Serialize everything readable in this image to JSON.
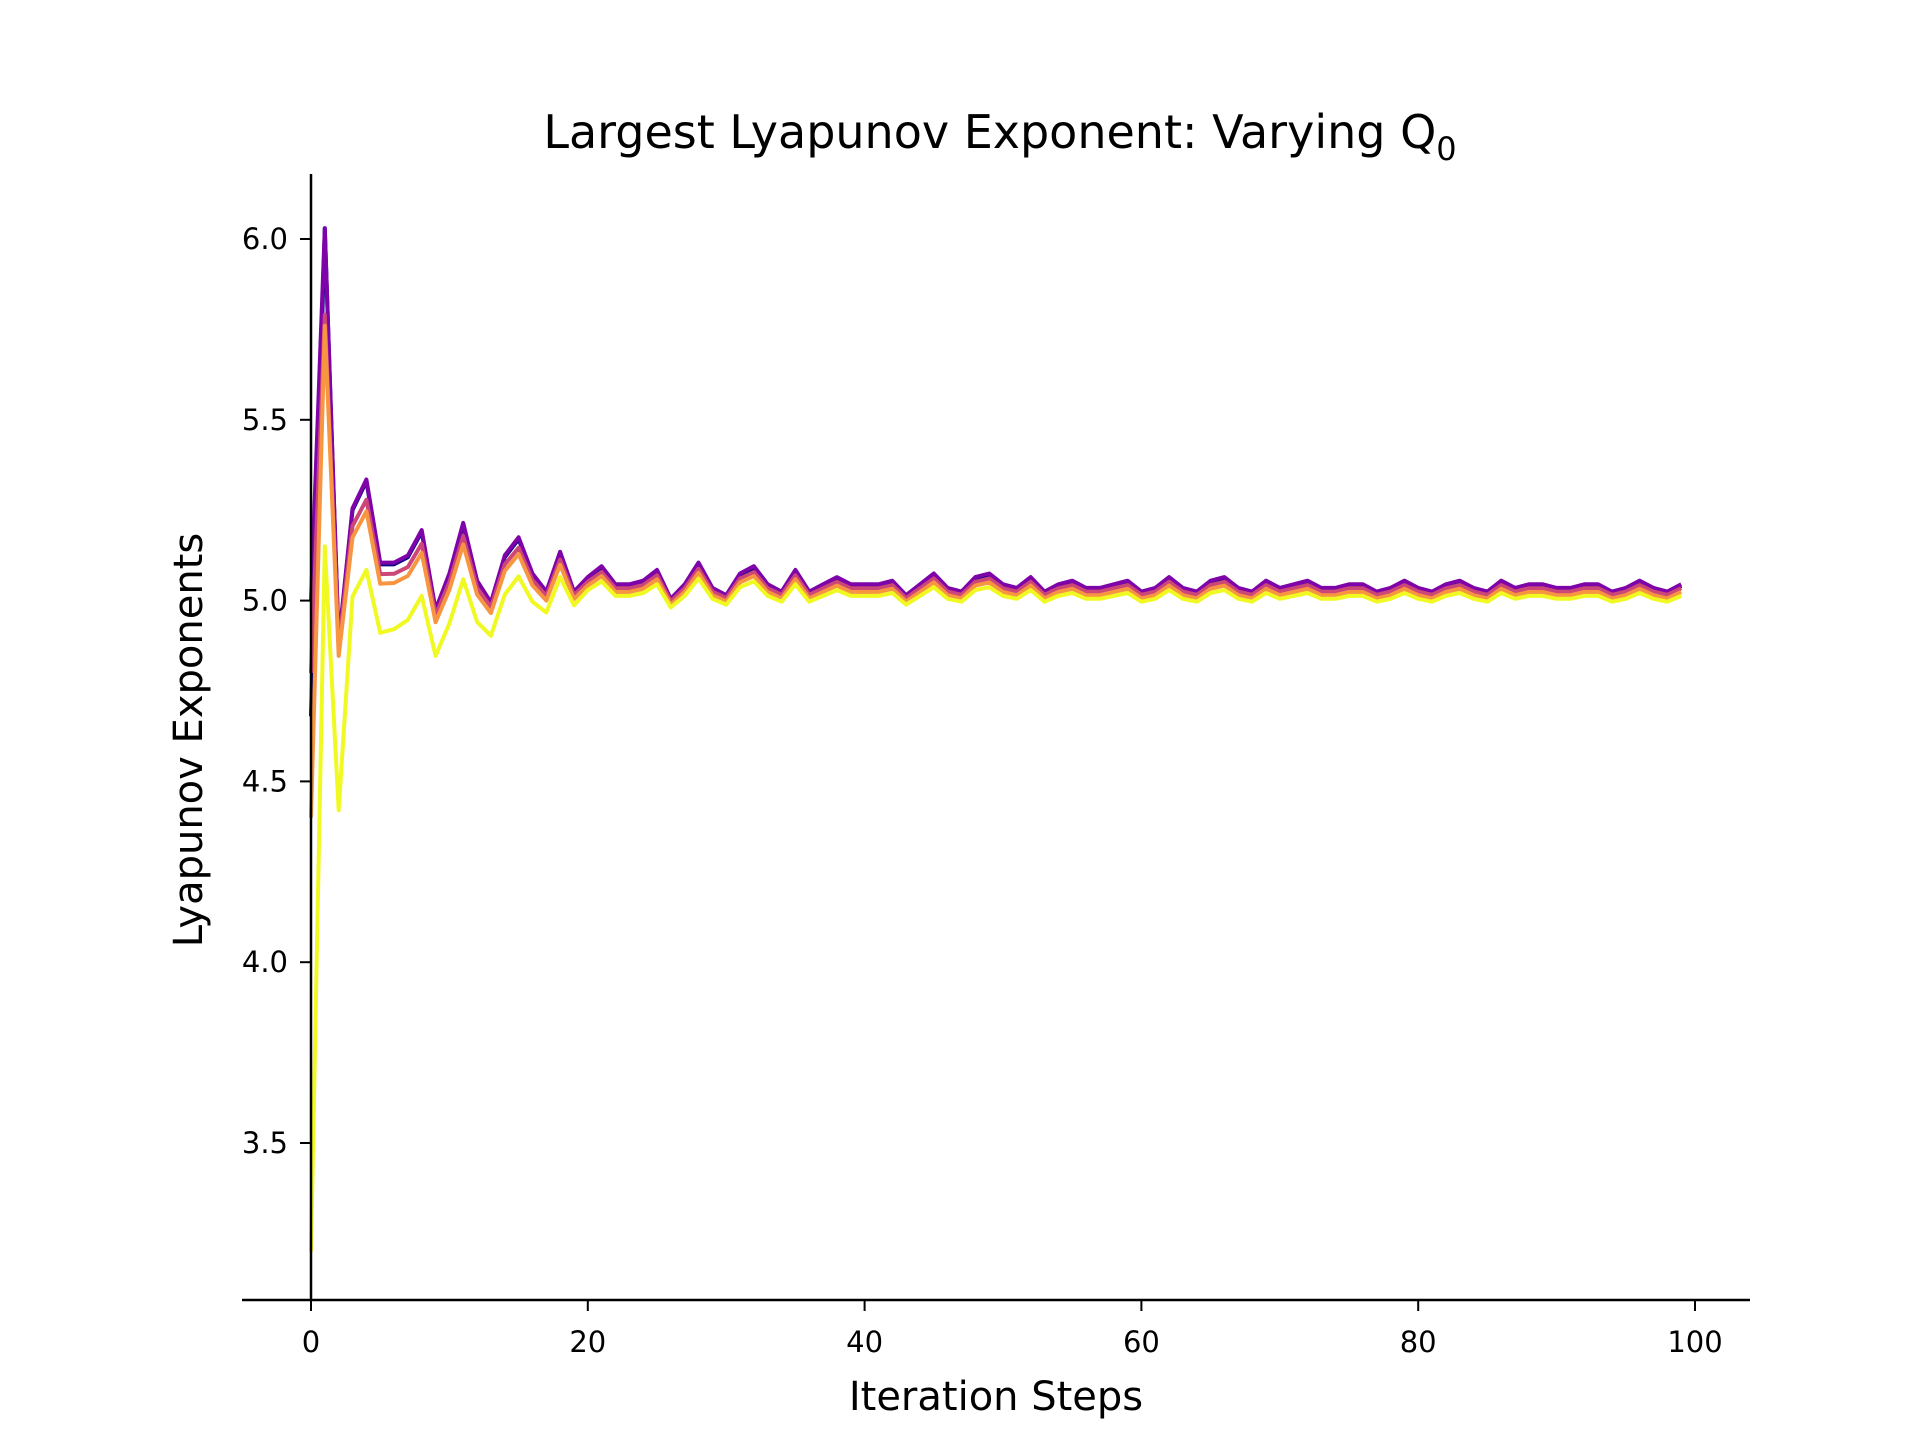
{
  "chart_data": {
    "type": "line",
    "title": "Largest Lyapunov Exponent: Varying Q",
    "title_subscript": "0",
    "xlabel": "Iteration Steps",
    "ylabel": "Lyapunov Exponents",
    "xlim": [
      -5,
      104
    ],
    "ylim": [
      3.13,
      6.18
    ],
    "xticks": [
      0,
      20,
      40,
      60,
      80,
      100
    ],
    "xtick_labels": [
      "0",
      "20",
      "40",
      "60",
      "80",
      "100"
    ],
    "yticks": [
      3.5,
      4.0,
      4.5,
      5.0,
      5.5,
      6.0
    ],
    "ytick_labels": [
      "3.5",
      "4.0",
      "4.5",
      "5.0",
      "5.5",
      "6.0"
    ],
    "grid": false,
    "legend": false,
    "anchors": [
      [
        0,
        4.68
      ],
      [
        1,
        6.03
      ],
      [
        2,
        4.88
      ],
      [
        3,
        5.25
      ],
      [
        4,
        5.33
      ],
      [
        5,
        5.1
      ],
      [
        6,
        5.1
      ],
      [
        7,
        5.12
      ],
      [
        8,
        5.19
      ],
      [
        9,
        4.97
      ],
      [
        10,
        5.07
      ],
      [
        11,
        5.21
      ],
      [
        12,
        5.05
      ],
      [
        13,
        4.99
      ],
      [
        14,
        5.12
      ],
      [
        15,
        5.17
      ],
      [
        16,
        5.07
      ],
      [
        17,
        5.02
      ],
      [
        18,
        5.13
      ],
      [
        19,
        5.02
      ],
      [
        20,
        5.06
      ],
      [
        21,
        5.09
      ],
      [
        22,
        5.04
      ],
      [
        23,
        5.04
      ],
      [
        24,
        5.05
      ],
      [
        25,
        5.08
      ],
      [
        26,
        5.0
      ],
      [
        27,
        5.04
      ],
      [
        28,
        5.1
      ],
      [
        29,
        5.03
      ],
      [
        30,
        5.01
      ],
      [
        31,
        5.07
      ],
      [
        32,
        5.09
      ],
      [
        33,
        5.04
      ],
      [
        34,
        5.02
      ],
      [
        35,
        5.08
      ],
      [
        36,
        5.02
      ],
      [
        37,
        5.04
      ],
      [
        38,
        5.06
      ],
      [
        39,
        5.04
      ],
      [
        40,
        5.04
      ],
      [
        41,
        5.04
      ],
      [
        42,
        5.05
      ],
      [
        43,
        5.01
      ],
      [
        44,
        5.04
      ],
      [
        45,
        5.07
      ],
      [
        46,
        5.03
      ],
      [
        47,
        5.02
      ],
      [
        48,
        5.06
      ],
      [
        49,
        5.07
      ],
      [
        50,
        5.04
      ],
      [
        51,
        5.03
      ],
      [
        52,
        5.06
      ],
      [
        53,
        5.02
      ],
      [
        54,
        5.04
      ],
      [
        55,
        5.05
      ],
      [
        56,
        5.03
      ],
      [
        57,
        5.03
      ],
      [
        58,
        5.04
      ],
      [
        59,
        5.05
      ],
      [
        60,
        5.02
      ],
      [
        61,
        5.03
      ],
      [
        62,
        5.06
      ],
      [
        63,
        5.03
      ],
      [
        64,
        5.02
      ],
      [
        65,
        5.05
      ],
      [
        66,
        5.06
      ],
      [
        67,
        5.03
      ],
      [
        68,
        5.02
      ],
      [
        69,
        5.05
      ],
      [
        70,
        5.03
      ],
      [
        71,
        5.04
      ],
      [
        72,
        5.05
      ],
      [
        73,
        5.03
      ],
      [
        74,
        5.03
      ],
      [
        75,
        5.04
      ],
      [
        76,
        5.04
      ],
      [
        77,
        5.02
      ],
      [
        78,
        5.03
      ],
      [
        79,
        5.05
      ],
      [
        80,
        5.03
      ],
      [
        81,
        5.02
      ],
      [
        82,
        5.04
      ],
      [
        83,
        5.05
      ],
      [
        84,
        5.03
      ],
      [
        85,
        5.02
      ],
      [
        86,
        5.05
      ],
      [
        87,
        5.03
      ],
      [
        88,
        5.04
      ],
      [
        89,
        5.04
      ],
      [
        90,
        5.03
      ],
      [
        91,
        5.03
      ],
      [
        92,
        5.04
      ],
      [
        93,
        5.04
      ],
      [
        94,
        5.02
      ],
      [
        95,
        5.03
      ],
      [
        96,
        5.05
      ],
      [
        97,
        5.03
      ],
      [
        98,
        5.02
      ],
      [
        99,
        5.04
      ]
    ],
    "series": [
      {
        "color": "#0d0887",
        "start": 4.68,
        "peak": 6.03,
        "offset": 0.0,
        "damp": 1.0,
        "low_shift": 0.0
      },
      {
        "color": "#7e03a8",
        "start": 5.0,
        "peak": 6.03,
        "offset": 0.005,
        "damp": 1.0,
        "low_shift": 0.0
      },
      {
        "color": "#cc4778",
        "start": 4.8,
        "peak": 5.79,
        "offset": -0.005,
        "damp": 0.9,
        "low_shift": 0.02
      },
      {
        "color": "#f89540",
        "start": 4.4,
        "peak": 5.76,
        "offset": -0.015,
        "damp": 0.88,
        "low_shift": 0.04
      },
      {
        "color": "#f0f921",
        "start": 3.2,
        "peak": 5.15,
        "offset": -0.025,
        "damp": 0.8,
        "low_shift": 0.2
      }
    ]
  }
}
